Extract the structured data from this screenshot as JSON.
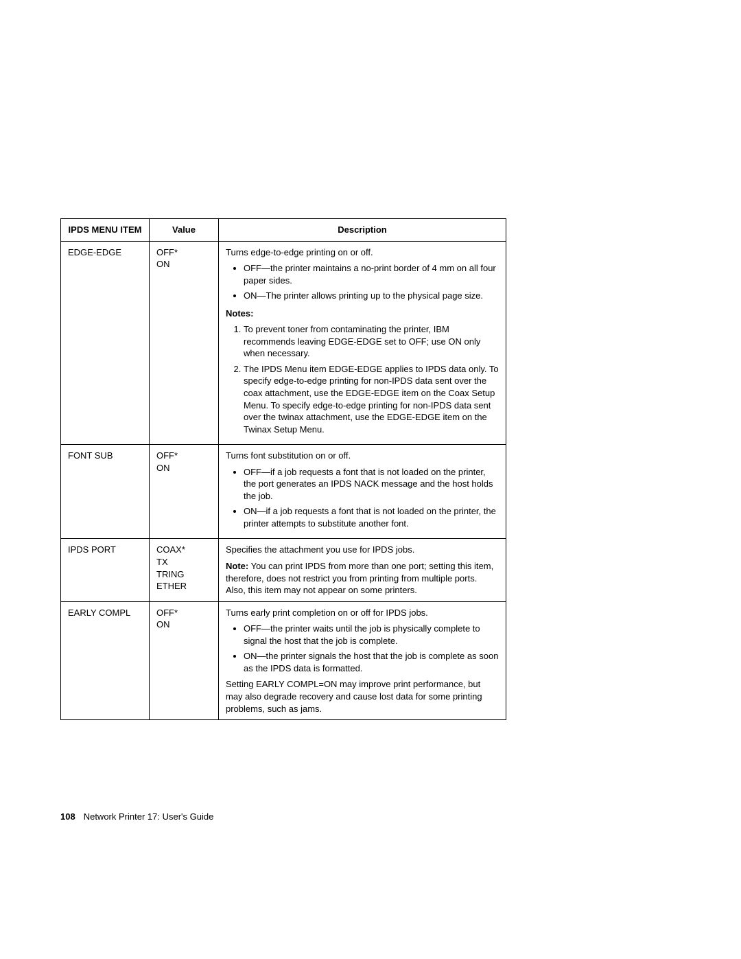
{
  "table": {
    "headers": {
      "col1": "IPDS MENU ITEM",
      "col2": "Value",
      "col3": "Description"
    },
    "rows": [
      {
        "item": "EDGE-EDGE",
        "value": "OFF*\nON",
        "desc_intro": "Turns edge-to-edge printing on or off.",
        "bullets": [
          "OFF—the printer maintains a no-print border of 4 mm on all four paper sides.",
          "ON—The printer allows printing up to the physical page size."
        ],
        "notes_label": "Notes:",
        "notes": [
          "To prevent toner from contaminating the printer, IBM recommends leaving EDGE-EDGE set to OFF; use ON only when necessary.",
          "The IPDS Menu item EDGE-EDGE applies to IPDS data only.  To specify edge-to-edge printing for non-IPDS data sent over the coax attachment, use the EDGE-EDGE item on the Coax Setup Menu.  To specify edge-to-edge printing for non-IPDS data sent over the twinax attachment, use the EDGE-EDGE item on the Twinax Setup Menu."
        ]
      },
      {
        "item": "FONT SUB",
        "value": "OFF*\nON",
        "desc_intro": "Turns font substitution on or off.",
        "bullets": [
          "OFF—if a job requests a font that is not loaded on the printer, the port generates an IPDS NACK message and the host holds the job.",
          "ON—if a job requests a font that is not loaded on the printer, the printer attempts to substitute another font."
        ]
      },
      {
        "item": "IPDS PORT",
        "value": "COAX*\nTX\nTRING\nETHER",
        "desc_intro": "Specifies the attachment you use for IPDS jobs.",
        "note_inline_label": "Note:",
        "note_inline_text": "  You can print IPDS from more than one port; setting this item, therefore, does not restrict you from printing from multiple ports.  Also, this item may not appear on some printers."
      },
      {
        "item": "EARLY COMPL",
        "value": "OFF*\nON",
        "desc_intro": "Turns early print completion on or off for IPDS jobs.",
        "bullets": [
          "OFF—the printer waits until the job is physically complete to signal the host that the job is complete.",
          "ON—the printer signals the host that the job is complete as soon as the IPDS data is formatted."
        ],
        "footnote": "Setting EARLY COMPL=ON may improve print performance, but may also degrade recovery and cause lost data for some printing problems, such as jams."
      }
    ]
  },
  "footer": {
    "page_number": "108",
    "text": "Network Printer 17: User's Guide"
  }
}
